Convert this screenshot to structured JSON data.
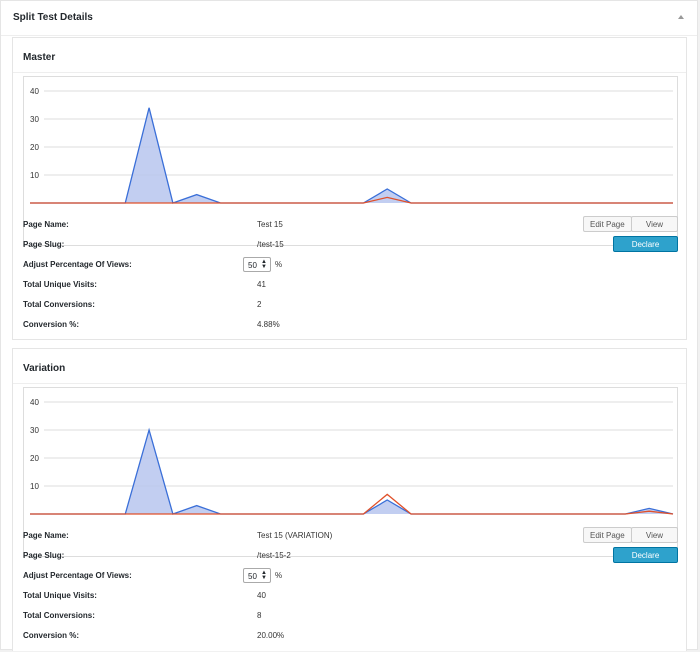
{
  "metabox": {
    "title": "Split Test Details"
  },
  "panels": [
    {
      "title": "Master",
      "fields": {
        "page_name_label": "Page Name:",
        "page_name": "Test 15",
        "page_slug_label": "Page Slug:",
        "page_slug": "/test-15",
        "adjust_label": "Adjust Percentage Of Views:",
        "adjust_value": "50",
        "adjust_unit": "%",
        "visits_label": "Total Unique Visits:",
        "visits": "41",
        "conversions_label": "Total Conversions:",
        "conversions": "2",
        "conv_pct_label": "Conversion %:",
        "conv_pct": "4.88%"
      },
      "buttons": {
        "edit": "Edit Page",
        "view": "View Page",
        "declare": "Declare Winner"
      }
    },
    {
      "title": "Variation",
      "fields": {
        "page_name_label": "Page Name:",
        "page_name": "Test 15 (VARIATION)",
        "page_slug_label": "Page Slug:",
        "page_slug": "/test-15-2",
        "adjust_label": "Adjust Percentage Of Views:",
        "adjust_value": "50",
        "adjust_unit": "%",
        "visits_label": "Total Unique Visits:",
        "visits": "40",
        "conversions_label": "Total Conversions:",
        "conversions": "8",
        "conv_pct_label": "Conversion %:",
        "conv_pct": "20.00%"
      },
      "buttons": {
        "edit": "Edit Page",
        "view": "View Page",
        "declare": "Declare Winner"
      }
    }
  ],
  "colors": {
    "visits_line": "#3a6fd8",
    "visits_fill": "#b7c6ef",
    "conversions_line": "#e0502a",
    "grid": "#dddddd",
    "button_primary": "#2ea2cc"
  },
  "chart_data": [
    {
      "type": "area",
      "ylim": [
        0,
        40
      ],
      "y_ticks": [
        "10",
        "20",
        "30",
        "40"
      ],
      "x": [
        0,
        1,
        2,
        3,
        4,
        5,
        6,
        7,
        8,
        9,
        10,
        11,
        12,
        13,
        14,
        15,
        16,
        17,
        18,
        19,
        20,
        21,
        22,
        23,
        24,
        25,
        26,
        27
      ],
      "series": [
        {
          "values": [
            0,
            0,
            0,
            0,
            0,
            34,
            0,
            3,
            0,
            0,
            0,
            0,
            0,
            0,
            0,
            5,
            0,
            0,
            0,
            0,
            0,
            0,
            0,
            0,
            0,
            0,
            0,
            0
          ]
        },
        {
          "values": [
            0,
            0,
            0,
            0,
            0,
            0,
            0,
            0,
            0,
            0,
            0,
            0,
            0,
            0,
            0,
            2,
            0,
            0,
            0,
            0,
            0,
            0,
            0,
            0,
            0,
            0,
            0,
            0
          ]
        }
      ]
    },
    {
      "type": "area",
      "ylim": [
        0,
        40
      ],
      "y_ticks": [
        "10",
        "20",
        "30",
        "40"
      ],
      "x": [
        0,
        1,
        2,
        3,
        4,
        5,
        6,
        7,
        8,
        9,
        10,
        11,
        12,
        13,
        14,
        15,
        16,
        17,
        18,
        19,
        20,
        21,
        22,
        23,
        24,
        25,
        26,
        27
      ],
      "series": [
        {
          "values": [
            0,
            0,
            0,
            0,
            0,
            30,
            0,
            3,
            0,
            0,
            0,
            0,
            0,
            0,
            0,
            5,
            0,
            0,
            0,
            0,
            0,
            0,
            0,
            0,
            0,
            0,
            2,
            0
          ]
        },
        {
          "values": [
            0,
            0,
            0,
            0,
            0,
            0,
            0,
            0,
            0,
            0,
            0,
            0,
            0,
            0,
            0,
            7,
            0,
            0,
            0,
            0,
            0,
            0,
            0,
            0,
            0,
            0,
            1,
            0
          ]
        }
      ]
    }
  ]
}
